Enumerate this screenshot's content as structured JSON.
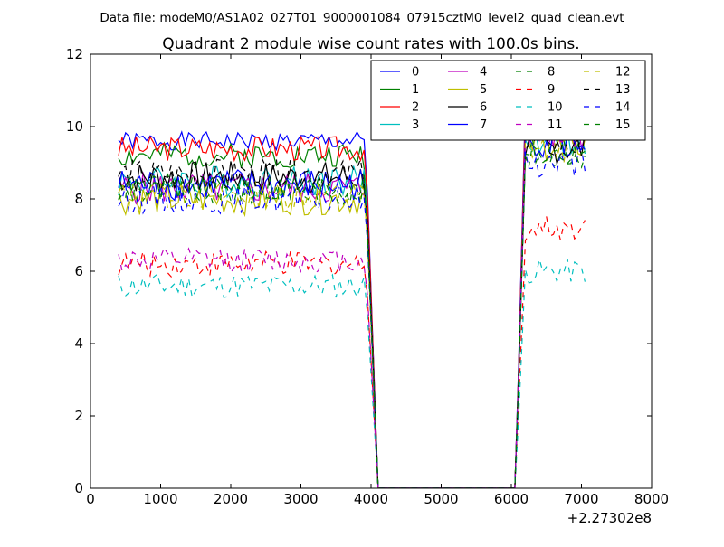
{
  "chart_data": {
    "type": "line",
    "suptitle": "Data file: modeM0/AS1A02_027T01_9000001084_07915cztM0_level2_quad_clean.evt",
    "title": "Quadrant 2 module wise count rates with 100.0s bins.",
    "xlabel": "",
    "ylabel": "",
    "x_offset_label": "+2.27302e8",
    "xlim": [
      0,
      8000
    ],
    "ylim": [
      0,
      12
    ],
    "x_ticks": [
      "0",
      "1000",
      "2000",
      "3000",
      "4000",
      "5000",
      "6000",
      "7000",
      "8000"
    ],
    "y_ticks": [
      "0",
      "2",
      "4",
      "6",
      "8",
      "10",
      "12"
    ],
    "grid": false,
    "legend_position": "top-right",
    "legend_columns": 4,
    "series": [
      {
        "name": "0",
        "color": "#0000ff",
        "dash": "solid",
        "level1": 9.6,
        "level2": 10.5,
        "amp": 0.25,
        "seed": 1
      },
      {
        "name": "1",
        "color": "#008000",
        "dash": "solid",
        "level1": 9.2,
        "level2": 10.0,
        "amp": 0.35,
        "seed": 2
      },
      {
        "name": "2",
        "color": "#ff0000",
        "dash": "solid",
        "level1": 9.4,
        "level2": 10.2,
        "amp": 0.35,
        "seed": 3
      },
      {
        "name": "3",
        "color": "#00bfbf",
        "dash": "solid",
        "level1": 8.5,
        "level2": 9.6,
        "amp": 0.45,
        "seed": 4
      },
      {
        "name": "4",
        "color": "#bf00bf",
        "dash": "solid",
        "level1": 8.3,
        "level2": 9.8,
        "amp": 0.45,
        "seed": 5
      },
      {
        "name": "5",
        "color": "#bfbf00",
        "dash": "solid",
        "level1": 8.0,
        "level2": 9.5,
        "amp": 0.45,
        "seed": 6
      },
      {
        "name": "6",
        "color": "#000000",
        "dash": "solid",
        "level1": 8.6,
        "level2": 9.4,
        "amp": 0.45,
        "seed": 7
      },
      {
        "name": "7",
        "color": "#0000ff",
        "dash": "solid",
        "level1": 8.4,
        "level2": 9.6,
        "amp": 0.45,
        "seed": 8
      },
      {
        "name": "8",
        "color": "#008000",
        "dash": "dashed",
        "level1": 8.2,
        "level2": 9.3,
        "amp": 0.4,
        "seed": 9
      },
      {
        "name": "9",
        "color": "#ff0000",
        "dash": "dashed",
        "level1": 6.2,
        "level2": 7.2,
        "amp": 0.35,
        "seed": 10
      },
      {
        "name": "10",
        "color": "#00bfbf",
        "dash": "dashed",
        "level1": 5.6,
        "level2": 6.0,
        "amp": 0.35,
        "seed": 11
      },
      {
        "name": "11",
        "color": "#bf00bf",
        "dash": "dashed",
        "level1": 6.3,
        "level2": 9.8,
        "amp": 0.35,
        "seed": 12
      },
      {
        "name": "12",
        "color": "#bfbf00",
        "dash": "dashed",
        "level1": 8.1,
        "level2": 9.4,
        "amp": 0.4,
        "seed": 13
      },
      {
        "name": "13",
        "color": "#000000",
        "dash": "dashed",
        "level1": 8.7,
        "level2": 9.5,
        "amp": 0.4,
        "seed": 14
      },
      {
        "name": "14",
        "color": "#0000ff",
        "dash": "dashed",
        "level1": 8.0,
        "level2": 9.0,
        "amp": 0.4,
        "seed": 15
      },
      {
        "name": "15",
        "color": "#008000",
        "dash": "dashed",
        "level1": 8.3,
        "level2": 9.2,
        "amp": 0.4,
        "seed": 16
      }
    ],
    "segments": [
      {
        "x_start": 400,
        "x_end": 3900,
        "step": 50
      },
      {
        "x_start": 6200,
        "x_end": 7050,
        "step": 50
      }
    ],
    "gap": {
      "drop_start": 3950,
      "zero_start": 4100,
      "zero_end": 6050,
      "rise_end": 6200
    }
  }
}
